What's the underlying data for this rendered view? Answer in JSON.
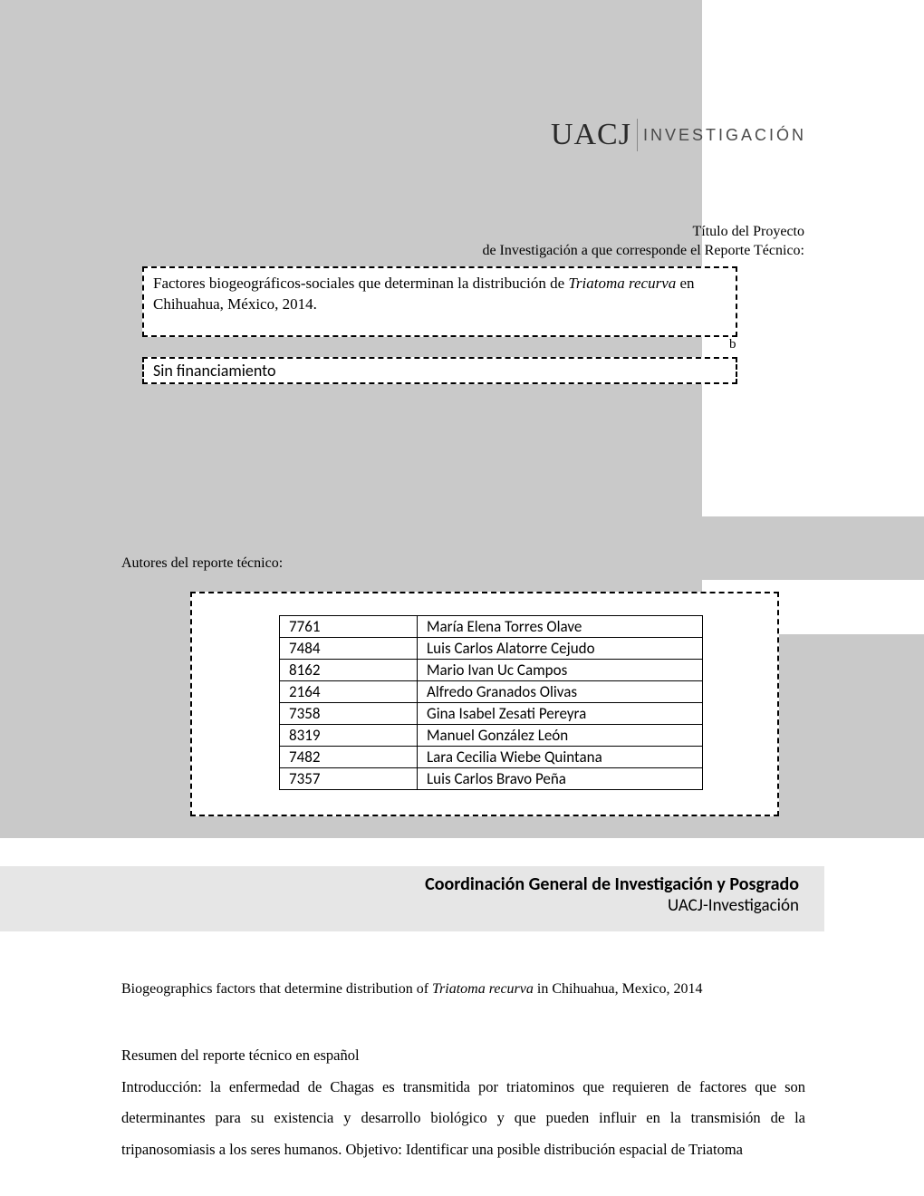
{
  "colors": {
    "gray_bg": "#c9c9c9",
    "light_gray_band": "#e6e6e6",
    "white": "#ffffff",
    "text": "#000000",
    "logo_text": "#2a2a2a"
  },
  "logo": {
    "acronym": "UACJ",
    "subtitle": "INVESTIGACIÓN"
  },
  "header": {
    "line1": "Título del Proyecto",
    "line2": "de Investigación a que corresponde el Reporte Técnico:"
  },
  "project_title": {
    "prefix": "Factores biogeográficos-sociales que determinan la distribución de ",
    "italic": "Triatoma recurva",
    "suffix": " en Chihuahua, México, 2014."
  },
  "stray_char": "b",
  "financing": "Sin financiamiento",
  "authors_label": "Autores del reporte técnico:",
  "authors": [
    {
      "id": "7761",
      "name": "María Elena Torres Olave"
    },
    {
      "id": "7484",
      "name": "Luis Carlos Alatorre Cejudo"
    },
    {
      "id": "8162",
      "name": "Mario Ivan Uc Campos"
    },
    {
      "id": "2164",
      "name": "Alfredo Granados Olivas"
    },
    {
      "id": "7358",
      "name": "Gina Isabel Zesati Pereyra"
    },
    {
      "id": "8319",
      "name": "Manuel González León"
    },
    {
      "id": "7482",
      "name": "Lara Cecilia Wiebe Quintana"
    },
    {
      "id": "7357",
      "name": "Luis Carlos Bravo Peña"
    }
  ],
  "footer": {
    "line1": "Coordinación General de Investigación y Posgrado",
    "line2": "UACJ-Investigación"
  },
  "english_title": {
    "prefix": "Biogeographics factors that determine distribution of ",
    "italic": "Triatoma recurva",
    "suffix": " in Chihuahua, Mexico, 2014"
  },
  "resumen": {
    "heading": "Resumen del reporte técnico en español",
    "body": "Introducción: la enfermedad de Chagas es transmitida por triatominos que requieren de factores que son determinantes para su existencia y desarrollo biológico y que pueden influir en la transmisión de la tripanosomiasis a los seres humanos. Objetivo: Identificar una posible distribución espacial de Triatoma"
  }
}
